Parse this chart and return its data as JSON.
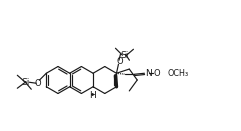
{
  "bg": "#ffffff",
  "lc": "#1a1a1a",
  "bc": "#5c3d00",
  "lw": 0.85,
  "fs": 5.8,
  "fw": 2.41,
  "fh": 1.31,
  "dpi": 100,
  "xlim": [
    0,
    241
  ],
  "ylim": [
    0,
    131
  ],
  "ring_r": 13.5,
  "ao": 30,
  "cAx": 58,
  "cAy": 80,
  "tms1_si_label": "Si",
  "tms2_si_label": "Si",
  "n_label": "N",
  "o_label": "O",
  "h_label": "H",
  "ome_label": "OCH₃"
}
